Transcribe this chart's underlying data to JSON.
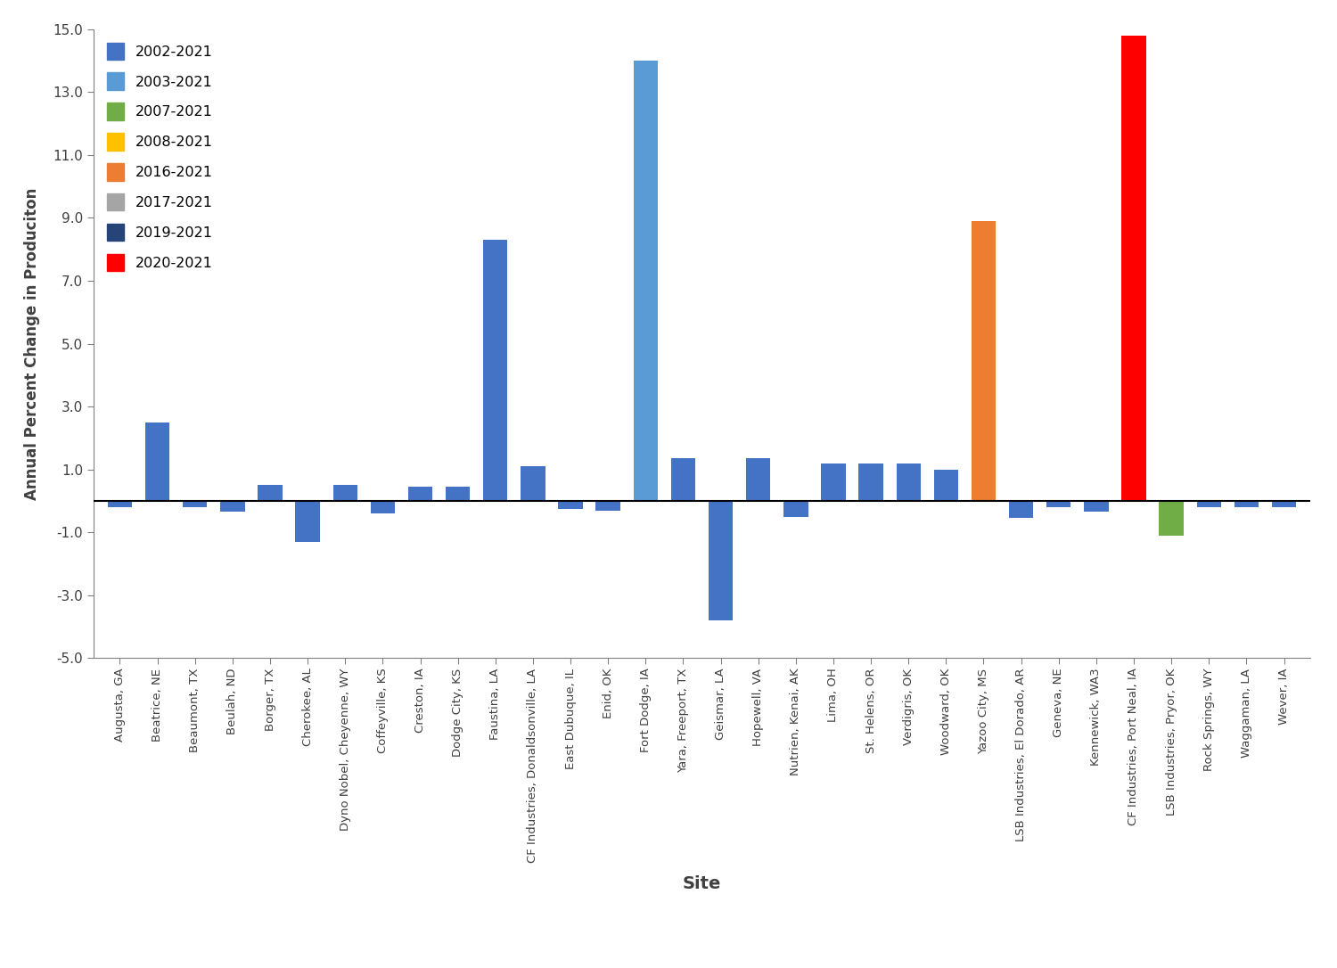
{
  "sites_values_colors": [
    [
      "Augusta, GA",
      -0.2,
      "#4472c4"
    ],
    [
      "Beatrice, NE",
      2.5,
      "#4472c4"
    ],
    [
      "Beaumont, TX",
      -0.2,
      "#4472c4"
    ],
    [
      "Beulah, ND",
      -0.35,
      "#4472c4"
    ],
    [
      "Borger, TX",
      0.5,
      "#4472c4"
    ],
    [
      "Cherokee, AL",
      -1.3,
      "#4472c4"
    ],
    [
      "Dyno Nobel, Cheyenne, WY",
      0.5,
      "#4472c4"
    ],
    [
      "Coffeyville, KS",
      -0.4,
      "#4472c4"
    ],
    [
      "Creston, IA",
      0.45,
      "#4472c4"
    ],
    [
      "Dodge City, KS",
      0.45,
      "#4472c4"
    ],
    [
      "Faustina, LA",
      8.3,
      "#4472c4"
    ],
    [
      "CF Industries, Donaldsonville, LA",
      1.1,
      "#4472c4"
    ],
    [
      "East Dubuque, IL",
      -0.25,
      "#4472c4"
    ],
    [
      "Enid, OK",
      -0.3,
      "#4472c4"
    ],
    [
      "Fort Dodge, IA",
      14.0,
      "#5b9bd5"
    ],
    [
      "Yara, Freeport, TX",
      1.35,
      "#4472c4"
    ],
    [
      "Geismar, LA",
      -3.8,
      "#4472c4"
    ],
    [
      "Hopewell, VA",
      1.35,
      "#4472c4"
    ],
    [
      "Nutrien, Kenai, AK",
      -0.5,
      "#4472c4"
    ],
    [
      "Lima, OH",
      1.2,
      "#4472c4"
    ],
    [
      "St. Helens, OR",
      1.2,
      "#4472c4"
    ],
    [
      "Verdigris, OK",
      1.2,
      "#4472c4"
    ],
    [
      "Woodward, OK",
      1.0,
      "#4472c4"
    ],
    [
      "Yazoo City, MS",
      8.9,
      "#ed7d31"
    ],
    [
      "LSB Industries, El Dorado, AR",
      -0.55,
      "#4472c4"
    ],
    [
      "Geneva, NE",
      -0.2,
      "#4472c4"
    ],
    [
      "Kennewick, WA3",
      -0.35,
      "#4472c4"
    ],
    [
      "CF Industries, Port Neal, IA",
      14.8,
      "#ff0000"
    ],
    [
      "LSB Industries, Pryor, OK",
      -1.1,
      "#70ad47"
    ],
    [
      "Rock Springs, WY",
      -0.2,
      "#4472c4"
    ],
    [
      "Waggaman, LA",
      -0.2,
      "#4472c4"
    ],
    [
      "Wever, IA",
      -0.2,
      "#4472c4"
    ]
  ],
  "legend_entries": [
    {
      "label": "2002-2021",
      "color": "#4472c4"
    },
    {
      "label": "2003-2021",
      "color": "#5b9bd5"
    },
    {
      "label": "2007-2021",
      "color": "#70ad47"
    },
    {
      "label": "2008-2021",
      "color": "#ffc000"
    },
    {
      "label": "2016-2021",
      "color": "#ed7d31"
    },
    {
      "label": "2017-2021",
      "color": "#a5a5a5"
    },
    {
      "label": "2019-2021",
      "color": "#264478"
    },
    {
      "label": "2020-2021",
      "color": "#ff0000"
    }
  ],
  "xlabel": "Site",
  "ylabel": "Annual Percent Change in Produciton",
  "ylim": [
    -5.0,
    15.0
  ],
  "yticks": [
    -5.0,
    -3.0,
    -1.0,
    1.0,
    3.0,
    5.0,
    7.0,
    9.0,
    11.0,
    13.0,
    15.0
  ],
  "ytick_labels": [
    "-5.0",
    "-3.0",
    "-1.0",
    "1.0",
    "3.0",
    "5.0",
    "7.0",
    "9.0",
    "11.0",
    "13.0",
    "15.0"
  ]
}
